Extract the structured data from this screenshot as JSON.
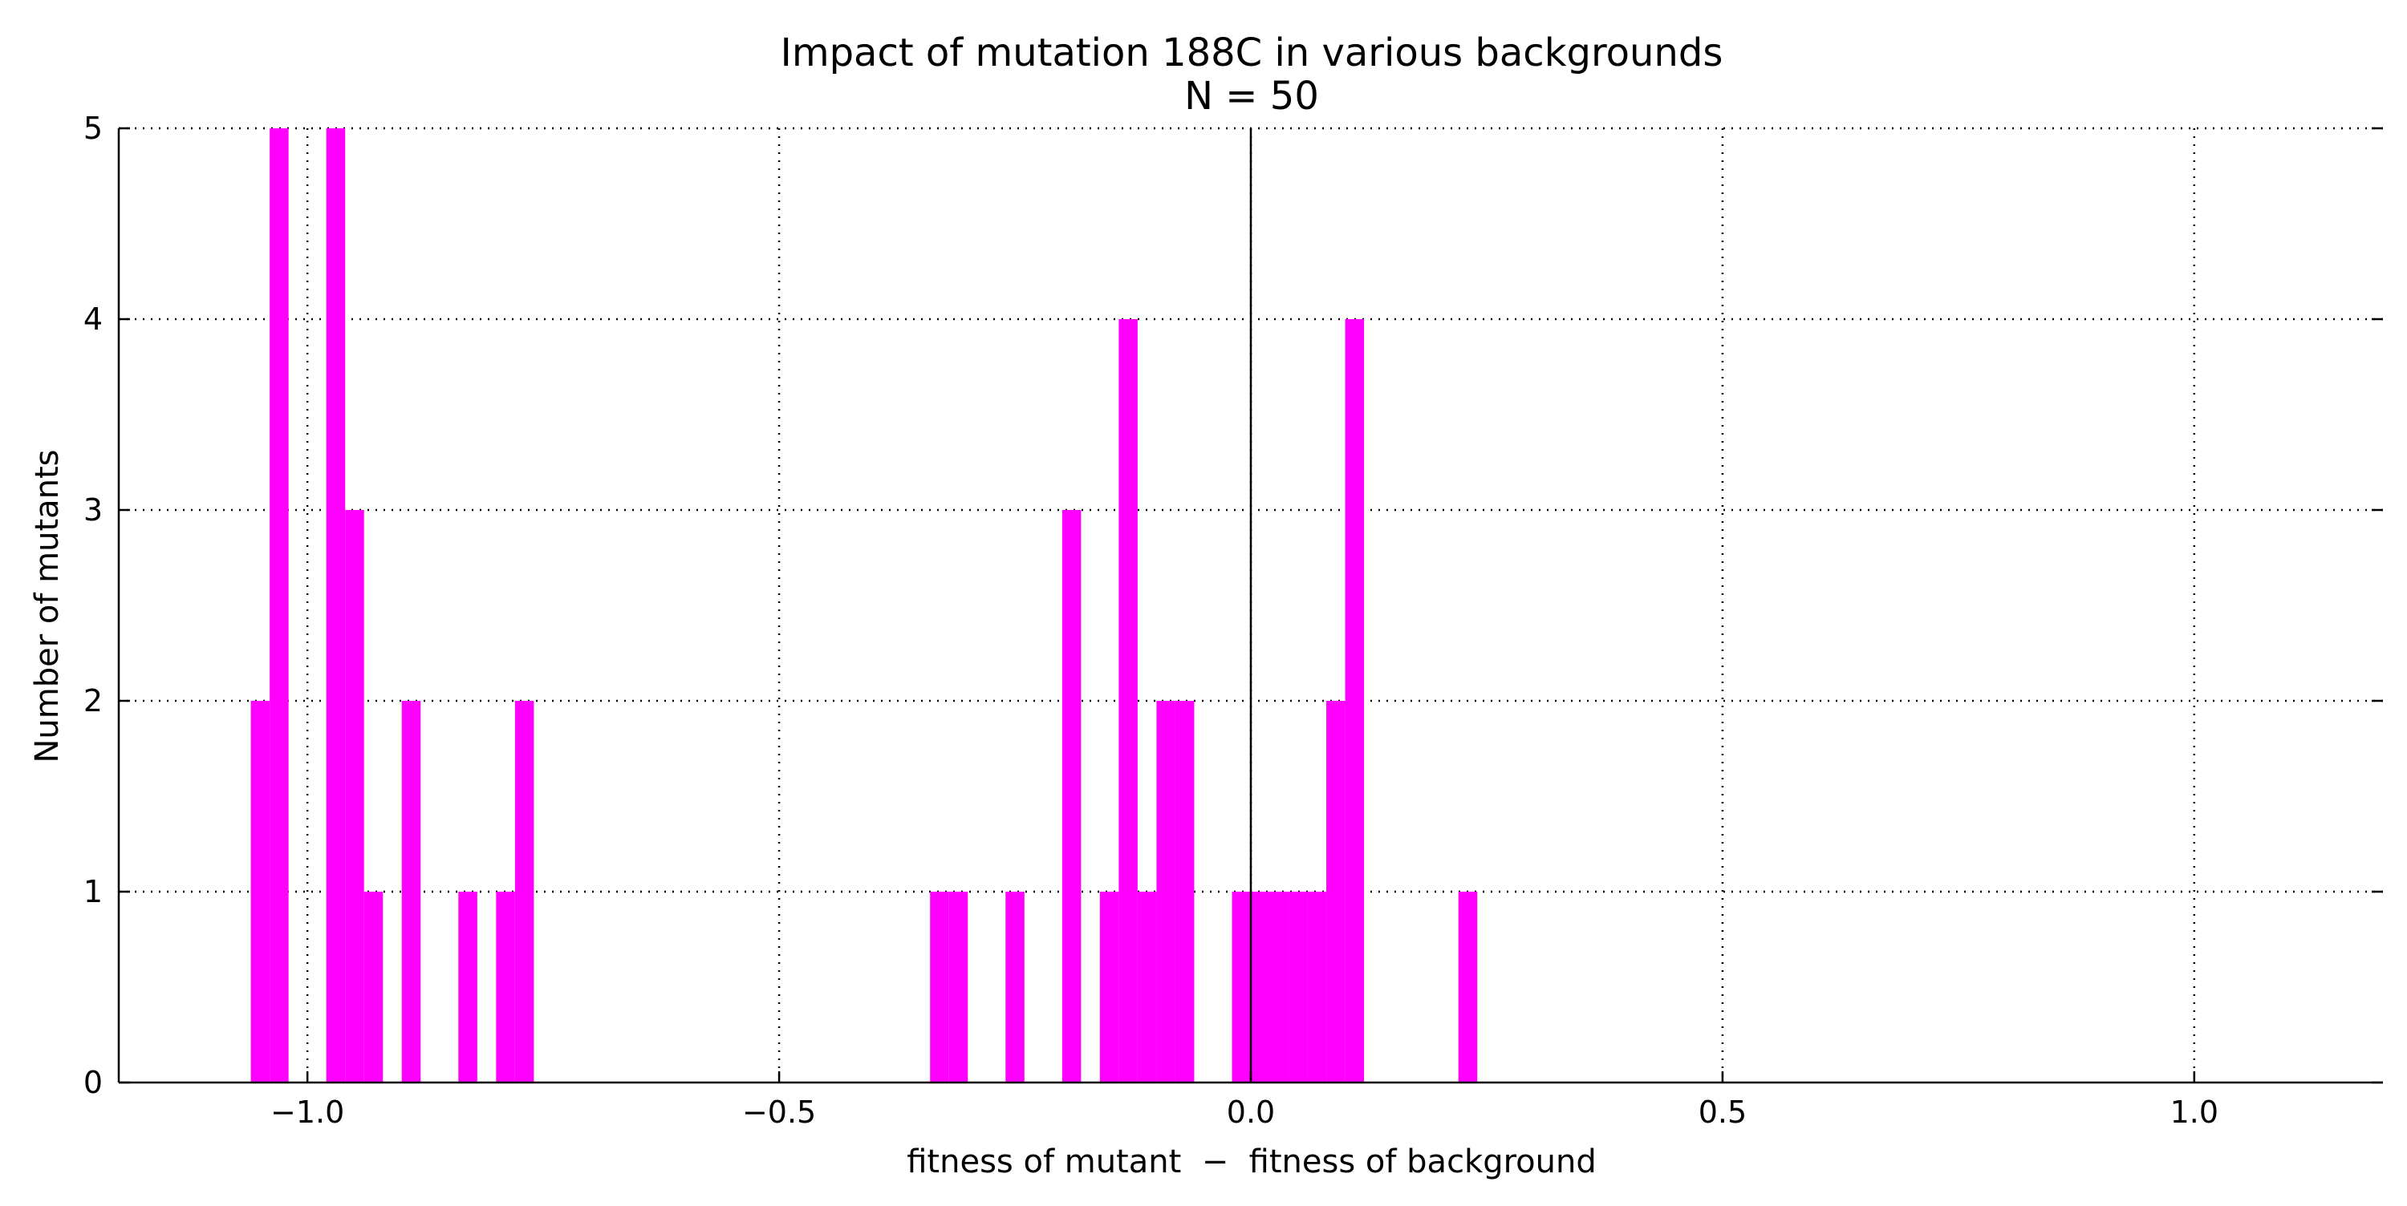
{
  "chart_data": {
    "type": "bar",
    "title": "Impact of mutation 188C in various backgrounds",
    "subtitle": "N = 50",
    "xlabel": "fitness of mutant  −  fitness of background",
    "ylabel": "Number of mutants",
    "xlim": [
      -1.2,
      1.2
    ],
    "ylim": [
      0,
      5
    ],
    "x_ticks": [
      -1.0,
      -0.5,
      0.0,
      0.5,
      1.0
    ],
    "x_tick_labels": [
      "−1.0",
      "−0.5",
      "0.0",
      "0.5",
      "1.0"
    ],
    "y_ticks": [
      0,
      1,
      2,
      3,
      4,
      5
    ],
    "y_tick_labels": [
      "0",
      "1",
      "2",
      "3",
      "4",
      "5"
    ],
    "grid": true,
    "grid_style": "dotted",
    "vline_at_x": 0.0,
    "bin_width": 0.02,
    "color": "#ff00ff",
    "series": [
      {
        "bins": [
          {
            "x0": -1.06,
            "count": 2
          },
          {
            "x0": -1.04,
            "count": 5
          },
          {
            "x0": -0.98,
            "count": 5
          },
          {
            "x0": -0.96,
            "count": 3
          },
          {
            "x0": -0.94,
            "count": 1
          },
          {
            "x0": -0.9,
            "count": 2
          },
          {
            "x0": -0.84,
            "count": 1
          },
          {
            "x0": -0.8,
            "count": 1
          },
          {
            "x0": -0.78,
            "count": 2
          },
          {
            "x0": -0.34,
            "count": 1
          },
          {
            "x0": -0.32,
            "count": 1
          },
          {
            "x0": -0.26,
            "count": 1
          },
          {
            "x0": -0.2,
            "count": 3
          },
          {
            "x0": -0.16,
            "count": 1
          },
          {
            "x0": -0.14,
            "count": 4
          },
          {
            "x0": -0.12,
            "count": 1
          },
          {
            "x0": -0.1,
            "count": 2
          },
          {
            "x0": -0.08,
            "count": 2
          },
          {
            "x0": -0.02,
            "count": 1
          },
          {
            "x0": 0.0,
            "count": 1
          },
          {
            "x0": 0.02,
            "count": 1
          },
          {
            "x0": 0.04,
            "count": 1
          },
          {
            "x0": 0.06,
            "count": 1
          },
          {
            "x0": 0.08,
            "count": 2
          },
          {
            "x0": 0.1,
            "count": 4
          },
          {
            "x0": 0.22,
            "count": 1
          }
        ]
      }
    ]
  }
}
